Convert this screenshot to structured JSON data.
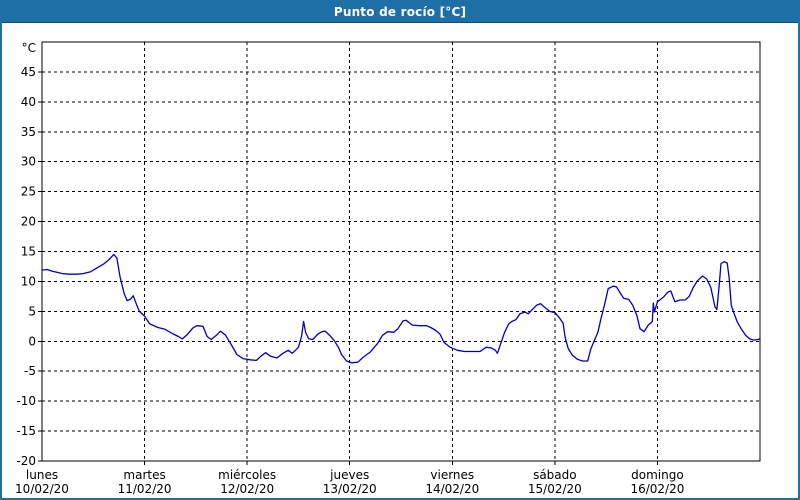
{
  "window": {
    "title": "Punto de rocío [°C]"
  },
  "colors": {
    "titlebar": "#1d6fa5",
    "frame": "#1d6fa5",
    "series_line": "#0000c3",
    "grid": "#000000",
    "text": "#000000",
    "plot_background": "#ffffff"
  },
  "chart_data": {
    "type": "line",
    "title": "Punto de rocío [°C]",
    "grid": "dashed",
    "legend": "none",
    "y_axis": {
      "unit": "°C",
      "min": -20,
      "max": 50,
      "tick_step": 5,
      "ticks": [
        45,
        40,
        35,
        30,
        25,
        20,
        15,
        10,
        5,
        0,
        -5,
        -10,
        -15,
        -20
      ]
    },
    "x_axis": {
      "unit": "days",
      "min": 0,
      "max": 7,
      "days": [
        {
          "name": "lunes",
          "date": "10/02/20"
        },
        {
          "name": "martes",
          "date": "11/02/20"
        },
        {
          "name": "miércoles",
          "date": "12/02/20"
        },
        {
          "name": "jueves",
          "date": "13/02/20"
        },
        {
          "name": "viernes",
          "date": "14/02/20"
        },
        {
          "name": "sábado",
          "date": "15/02/20"
        },
        {
          "name": "domingo",
          "date": "16/02/20"
        }
      ]
    },
    "series": [
      {
        "name": "Punto de rocío",
        "color": "#0000c3",
        "points": [
          [
            0.0,
            11.9
          ],
          [
            0.05,
            12.0
          ],
          [
            0.1,
            11.7
          ],
          [
            0.15,
            11.5
          ],
          [
            0.2,
            11.3
          ],
          [
            0.27,
            11.2
          ],
          [
            0.34,
            11.2
          ],
          [
            0.4,
            11.3
          ],
          [
            0.47,
            11.6
          ],
          [
            0.53,
            12.2
          ],
          [
            0.6,
            12.9
          ],
          [
            0.65,
            13.6
          ],
          [
            0.7,
            14.5
          ],
          [
            0.73,
            13.9
          ],
          [
            0.76,
            10.8
          ],
          [
            0.8,
            8.0
          ],
          [
            0.83,
            6.8
          ],
          [
            0.86,
            7.0
          ],
          [
            0.89,
            7.6
          ],
          [
            0.92,
            6.2
          ],
          [
            0.95,
            5.0
          ],
          [
            1.0,
            4.2
          ],
          [
            1.05,
            2.9
          ],
          [
            1.13,
            2.3
          ],
          [
            1.2,
            2.0
          ],
          [
            1.27,
            1.3
          ],
          [
            1.33,
            0.8
          ],
          [
            1.37,
            0.4
          ],
          [
            1.42,
            1.2
          ],
          [
            1.47,
            2.2
          ],
          [
            1.51,
            2.6
          ],
          [
            1.57,
            2.5
          ],
          [
            1.61,
            0.8
          ],
          [
            1.65,
            0.3
          ],
          [
            1.7,
            1.0
          ],
          [
            1.74,
            1.7
          ],
          [
            1.79,
            1.0
          ],
          [
            1.84,
            -0.4
          ],
          [
            1.9,
            -2.2
          ],
          [
            1.96,
            -2.9
          ],
          [
            2.03,
            -3.1
          ],
          [
            2.09,
            -3.2
          ],
          [
            2.14,
            -2.4
          ],
          [
            2.18,
            -1.9
          ],
          [
            2.23,
            -2.5
          ],
          [
            2.29,
            -2.8
          ],
          [
            2.35,
            -2.0
          ],
          [
            2.4,
            -1.5
          ],
          [
            2.44,
            -2.0
          ],
          [
            2.5,
            -1.0
          ],
          [
            2.53,
            0.8
          ],
          [
            2.55,
            3.3
          ],
          [
            2.57,
            1.5
          ],
          [
            2.6,
            0.4
          ],
          [
            2.64,
            0.3
          ],
          [
            2.69,
            1.2
          ],
          [
            2.73,
            1.6
          ],
          [
            2.76,
            1.7
          ],
          [
            2.81,
            0.9
          ],
          [
            2.85,
            0.1
          ],
          [
            2.89,
            -1.0
          ],
          [
            2.92,
            -2.2
          ],
          [
            2.97,
            -3.3
          ],
          [
            3.02,
            -3.6
          ],
          [
            3.08,
            -3.5
          ],
          [
            3.13,
            -2.7
          ],
          [
            3.2,
            -1.8
          ],
          [
            3.27,
            -0.4
          ],
          [
            3.32,
            1.0
          ],
          [
            3.37,
            1.6
          ],
          [
            3.43,
            1.5
          ],
          [
            3.47,
            2.1
          ],
          [
            3.52,
            3.4
          ],
          [
            3.55,
            3.5
          ],
          [
            3.61,
            2.7
          ],
          [
            3.68,
            2.6
          ],
          [
            3.75,
            2.6
          ],
          [
            3.79,
            2.3
          ],
          [
            3.84,
            1.8
          ],
          [
            3.88,
            1.2
          ],
          [
            3.92,
            -0.2
          ],
          [
            3.98,
            -1.0
          ],
          [
            4.05,
            -1.5
          ],
          [
            4.12,
            -1.7
          ],
          [
            4.19,
            -1.7
          ],
          [
            4.27,
            -1.7
          ],
          [
            4.33,
            -1.0
          ],
          [
            4.38,
            -1.1
          ],
          [
            4.42,
            -1.5
          ],
          [
            4.44,
            -2.0
          ],
          [
            4.47,
            -0.5
          ],
          [
            4.51,
            1.5
          ],
          [
            4.55,
            2.9
          ],
          [
            4.58,
            3.3
          ],
          [
            4.62,
            3.6
          ],
          [
            4.66,
            4.6
          ],
          [
            4.71,
            4.9
          ],
          [
            4.74,
            4.6
          ],
          [
            4.78,
            5.3
          ],
          [
            4.82,
            6.0
          ],
          [
            4.86,
            6.3
          ],
          [
            4.9,
            5.7
          ],
          [
            4.95,
            5.0
          ],
          [
            5.0,
            4.8
          ],
          [
            5.04,
            4.0
          ],
          [
            5.08,
            3.0
          ],
          [
            5.1,
            0.7
          ],
          [
            5.13,
            -1.2
          ],
          [
            5.17,
            -2.3
          ],
          [
            5.22,
            -3.0
          ],
          [
            5.27,
            -3.3
          ],
          [
            5.32,
            -3.3
          ],
          [
            5.35,
            -1.3
          ],
          [
            5.38,
            -0.1
          ],
          [
            5.42,
            1.5
          ],
          [
            5.45,
            3.8
          ],
          [
            5.48,
            5.8
          ],
          [
            5.52,
            8.8
          ],
          [
            5.57,
            9.2
          ],
          [
            5.6,
            9.1
          ],
          [
            5.64,
            8.0
          ],
          [
            5.67,
            7.2
          ],
          [
            5.72,
            7.0
          ],
          [
            5.76,
            6.0
          ],
          [
            5.8,
            4.3
          ],
          [
            5.83,
            2.1
          ],
          [
            5.87,
            1.6
          ],
          [
            5.91,
            2.7
          ],
          [
            5.95,
            3.3
          ],
          [
            5.96,
            6.4
          ],
          [
            5.97,
            4.9
          ],
          [
            6.0,
            6.6
          ],
          [
            6.03,
            7.0
          ],
          [
            6.06,
            7.4
          ],
          [
            6.1,
            8.2
          ],
          [
            6.13,
            8.4
          ],
          [
            6.17,
            6.6
          ],
          [
            6.22,
            6.9
          ],
          [
            6.27,
            6.9
          ],
          [
            6.31,
            7.5
          ],
          [
            6.35,
            9.0
          ],
          [
            6.39,
            10.1
          ],
          [
            6.44,
            10.9
          ],
          [
            6.48,
            10.4
          ],
          [
            6.52,
            9.0
          ],
          [
            6.56,
            5.8
          ],
          [
            6.58,
            5.3
          ],
          [
            6.6,
            9.0
          ],
          [
            6.62,
            13.0
          ],
          [
            6.65,
            13.3
          ],
          [
            6.68,
            13.1
          ],
          [
            6.7,
            10.5
          ],
          [
            6.72,
            6.0
          ],
          [
            6.75,
            4.5
          ],
          [
            6.78,
            3.2
          ],
          [
            6.82,
            2.0
          ],
          [
            6.86,
            1.0
          ],
          [
            6.9,
            0.4
          ],
          [
            6.94,
            0.2
          ],
          [
            6.98,
            0.3
          ],
          [
            7.0,
            0.4
          ]
        ]
      }
    ]
  }
}
